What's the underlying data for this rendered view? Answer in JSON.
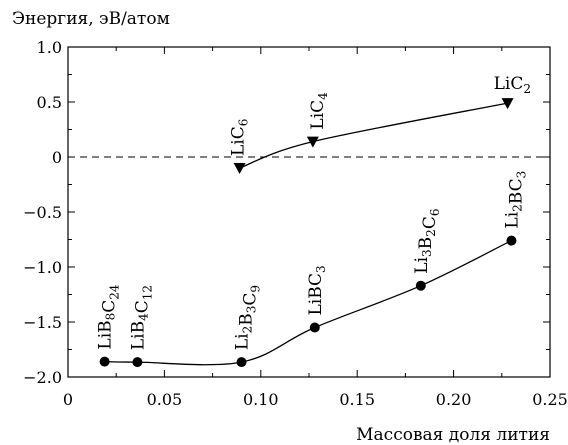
{
  "chart_data": {
    "type": "line",
    "ylabel": "Энергия, эВ/атом",
    "xlabel": "Массовая доля лития",
    "xlim": [
      0,
      0.25
    ],
    "ylim": [
      -2.0,
      1.0
    ],
    "x_ticks": [
      "0",
      "0.05",
      "0.10",
      "0.15",
      "0.20",
      "0.25"
    ],
    "y_ticks": [
      "1.0",
      "0.5",
      "0",
      "-0.5",
      "-1.0",
      "-1.5",
      "-2.0"
    ],
    "reference_line": {
      "y": 0,
      "style": "dashed"
    },
    "series": [
      {
        "marker": "triangle-down",
        "points": [
          {
            "x": 0.089,
            "y": -0.1,
            "label": [
              [
                "Li",
                ""
              ],
              [
                "C",
                ""
              ],
              [
                "6",
                "sub"
              ]
            ]
          },
          {
            "x": 0.127,
            "y": 0.14,
            "label": [
              [
                "Li",
                ""
              ],
              [
                "C",
                ""
              ],
              [
                "4",
                "sub"
              ]
            ]
          },
          {
            "x": 0.228,
            "y": 0.49,
            "label": [
              [
                "Li",
                ""
              ],
              [
                "C",
                ""
              ],
              [
                "2",
                "sub"
              ]
            ]
          }
        ]
      },
      {
        "marker": "circle",
        "points": [
          {
            "x": 0.019,
            "y": -1.86,
            "label": [
              [
                "LiB",
                ""
              ],
              [
                "8",
                "sub"
              ],
              [
                "C",
                ""
              ],
              [
                "24",
                "sub"
              ]
            ]
          },
          {
            "x": 0.036,
            "y": -1.865,
            "label": [
              [
                "LiB",
                ""
              ],
              [
                "4",
                "sub"
              ],
              [
                "C",
                ""
              ],
              [
                "12",
                "sub"
              ]
            ]
          },
          {
            "x": 0.09,
            "y": -1.865,
            "label": [
              [
                "Li",
                ""
              ],
              [
                "2",
                "sub"
              ],
              [
                "B",
                ""
              ],
              [
                "3",
                "sub"
              ],
              [
                "C",
                ""
              ],
              [
                "9",
                "sub"
              ]
            ]
          },
          {
            "x": 0.128,
            "y": -1.55,
            "label": [
              [
                "LiBC",
                ""
              ],
              [
                "3",
                "sub"
              ]
            ]
          },
          {
            "x": 0.183,
            "y": -1.17,
            "label": [
              [
                "Li",
                ""
              ],
              [
                "3",
                "sub"
              ],
              [
                "B",
                ""
              ],
              [
                "2",
                "sub"
              ],
              [
                "C",
                ""
              ],
              [
                "6",
                "sub"
              ]
            ]
          },
          {
            "x": 0.23,
            "y": -0.76,
            "label": [
              [
                "Li",
                ""
              ],
              [
                "2",
                "sub"
              ],
              [
                "BC",
                ""
              ],
              [
                "3",
                "sub"
              ]
            ]
          }
        ]
      }
    ]
  }
}
